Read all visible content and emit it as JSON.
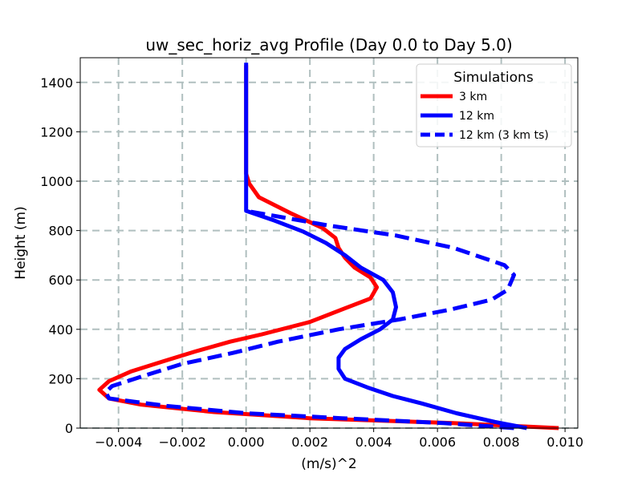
{
  "chart_data": {
    "type": "line",
    "title": "uw_sec_horiz_avg Profile (Day 0.0 to Day 5.0)",
    "xlabel": "(m/s)^2",
    "ylabel": "Height (m)",
    "xlim": [
      -0.0052,
      0.0104
    ],
    "ylim": [
      0,
      1500
    ],
    "xticks": [
      -0.004,
      -0.002,
      0.0,
      0.002,
      0.004,
      0.006,
      0.008,
      0.01
    ],
    "xtick_labels": [
      "−0.004",
      "−0.002",
      "0.000",
      "0.002",
      "0.004",
      "0.006",
      "0.008",
      "0.010"
    ],
    "yticks": [
      0,
      200,
      400,
      600,
      800,
      1000,
      1200,
      1400
    ],
    "ytick_labels": [
      "0",
      "200",
      "400",
      "600",
      "800",
      "1000",
      "1200",
      "1400"
    ],
    "grid": true,
    "legend": {
      "title": "Simulations",
      "placement": "top-right"
    },
    "series": [
      {
        "name": "3 km",
        "color": "#ff0000",
        "style": "solid",
        "points": [
          [
            0.0098,
            0
          ],
          [
            0.0065,
            20
          ],
          [
            0.002,
            40
          ],
          [
            -0.001,
            65
          ],
          [
            -0.0033,
            95
          ],
          [
            -0.0043,
            120
          ],
          [
            -0.0046,
            155
          ],
          [
            -0.0043,
            190
          ],
          [
            -0.0036,
            230
          ],
          [
            -0.0026,
            270
          ],
          [
            -0.0016,
            310
          ],
          [
            -0.0005,
            350
          ],
          [
            0.0005,
            380
          ],
          [
            0.002,
            430
          ],
          [
            0.0031,
            485
          ],
          [
            0.0039,
            525
          ],
          [
            0.0041,
            570
          ],
          [
            0.0039,
            610
          ],
          [
            0.0034,
            650
          ],
          [
            0.0031,
            690
          ],
          [
            0.0029,
            730
          ],
          [
            0.0028,
            770
          ],
          [
            0.0024,
            810
          ],
          [
            0.0014,
            870
          ],
          [
            0.0004,
            935
          ],
          [
            0.0001,
            990
          ],
          [
            0.0,
            1030
          ],
          [
            0.0,
            1200
          ],
          [
            0.0,
            1470
          ]
        ]
      },
      {
        "name": "12 km",
        "color": "#0000ff",
        "style": "solid",
        "points": [
          [
            0.0088,
            0
          ],
          [
            0.0078,
            25
          ],
          [
            0.0066,
            60
          ],
          [
            0.0055,
            100
          ],
          [
            0.0046,
            130
          ],
          [
            0.0038,
            165
          ],
          [
            0.0031,
            200
          ],
          [
            0.0029,
            240
          ],
          [
            0.0029,
            285
          ],
          [
            0.0031,
            320
          ],
          [
            0.0036,
            360
          ],
          [
            0.0042,
            400
          ],
          [
            0.0046,
            440
          ],
          [
            0.0047,
            490
          ],
          [
            0.0046,
            550
          ],
          [
            0.0043,
            600
          ],
          [
            0.0036,
            650
          ],
          [
            0.0031,
            700
          ],
          [
            0.0025,
            750
          ],
          [
            0.0018,
            795
          ],
          [
            0.0009,
            840
          ],
          [
            0.0,
            880
          ],
          [
            0.0,
            930
          ],
          [
            0.0,
            1100
          ],
          [
            0.0,
            1300
          ],
          [
            0.0,
            1480
          ]
        ]
      },
      {
        "name": "12 km (3 km ts)",
        "color": "#0000ff",
        "style": "dashed",
        "points": [
          [
            0.0084,
            0
          ],
          [
            0.0062,
            20
          ],
          [
            0.003,
            40
          ],
          [
            0.0,
            60
          ],
          [
            -0.0025,
            90
          ],
          [
            -0.0043,
            120
          ],
          [
            -0.0044,
            145
          ],
          [
            -0.0042,
            170
          ],
          [
            -0.003,
            220
          ],
          [
            -0.002,
            260
          ],
          [
            -0.0004,
            305
          ],
          [
            0.001,
            350
          ],
          [
            0.0029,
            400
          ],
          [
            0.0048,
            440
          ],
          [
            0.0064,
            480
          ],
          [
            0.0077,
            520
          ],
          [
            0.0082,
            560
          ],
          [
            0.0084,
            620
          ],
          [
            0.0081,
            660
          ],
          [
            0.0065,
            730
          ],
          [
            0.0047,
            780
          ],
          [
            0.0026,
            820
          ],
          [
            0.0013,
            850
          ],
          [
            0.0,
            880
          ]
        ]
      }
    ]
  }
}
